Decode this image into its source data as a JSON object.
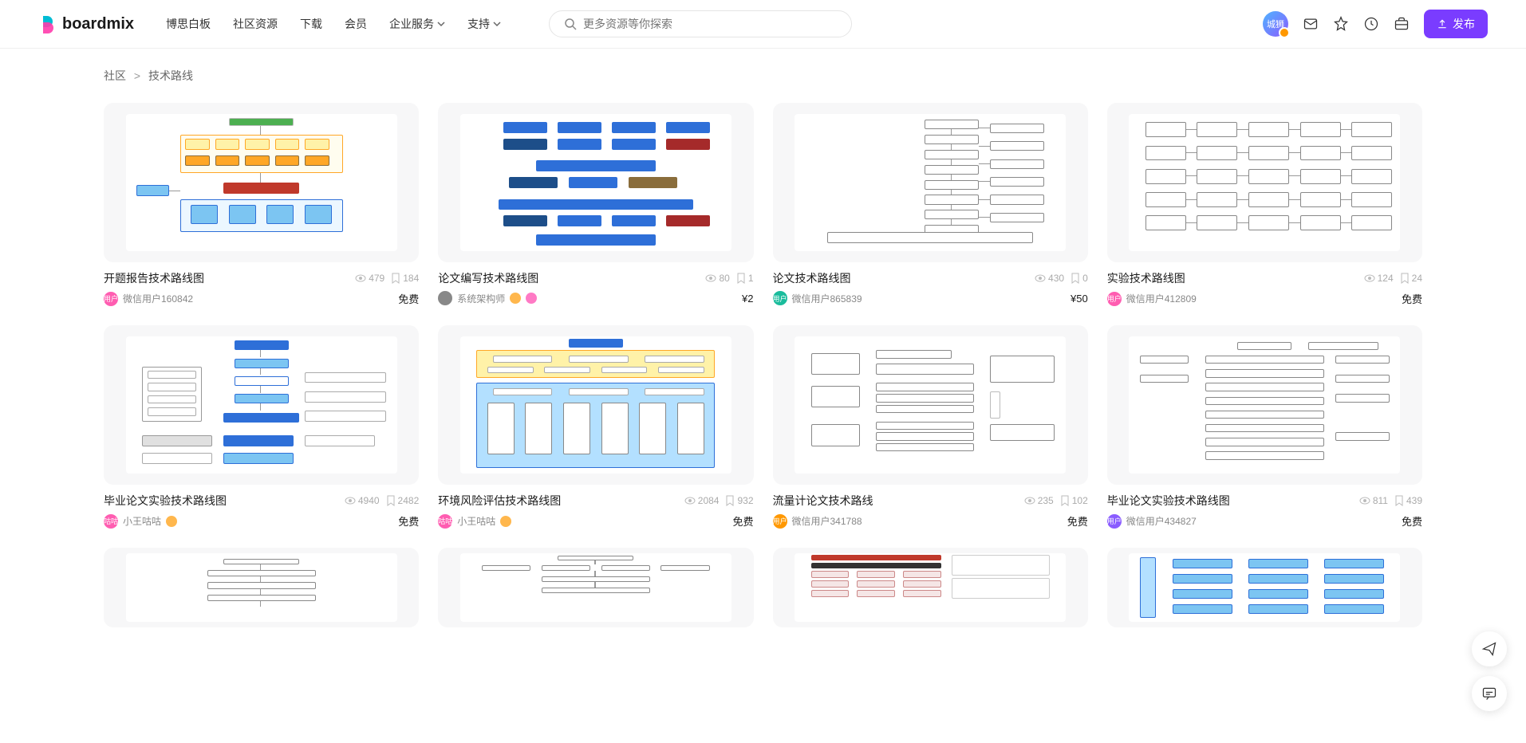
{
  "header": {
    "logo": "boardmix",
    "nav": [
      "博思白板",
      "社区资源",
      "下载",
      "会员",
      "企业服务",
      "支持"
    ],
    "search_placeholder": "更多资源等你探索",
    "avatar_text": "城狮",
    "publish_label": "发布"
  },
  "breadcrumb": {
    "root": "社区",
    "current": "技术路线"
  },
  "cards": [
    {
      "title": "开题报告技术路线图",
      "views": "479",
      "saves": "184",
      "author": "微信用户160842",
      "author_tag": "用户",
      "avatar_bg": "#ff5db1",
      "price": "免费",
      "thumb_style": 1
    },
    {
      "title": "论文编写技术路线图",
      "views": "80",
      "saves": "1",
      "author": "系统架构师",
      "author_tag": "",
      "avatar_bg": "#888",
      "has_badge": true,
      "badge2": "#ff7ac5",
      "price": "¥2",
      "thumb_style": 2
    },
    {
      "title": "论文技术路线图",
      "views": "430",
      "saves": "0",
      "author": "微信用户865839",
      "author_tag": "用户",
      "avatar_bg": "#1abc9c",
      "price": "¥50",
      "thumb_style": 3
    },
    {
      "title": "实验技术路线图",
      "views": "124",
      "saves": "24",
      "author": "微信用户412809",
      "author_tag": "用户",
      "avatar_bg": "#ff5db1",
      "price": "免费",
      "thumb_style": 4
    },
    {
      "title": "毕业论文实验技术路线图",
      "views": "4940",
      "saves": "2482",
      "author": "小王咕咕",
      "author_tag": "咕咕",
      "avatar_bg": "#ff5db1",
      "has_badge": true,
      "price": "免费",
      "thumb_style": 5
    },
    {
      "title": "环境风险评估技术路线图",
      "views": "2084",
      "saves": "932",
      "author": "小王咕咕",
      "author_tag": "咕咕",
      "avatar_bg": "#ff5db1",
      "has_badge": true,
      "price": "免费",
      "thumb_style": 6
    },
    {
      "title": "流量计论文技术路线",
      "views": "235",
      "saves": "102",
      "author": "微信用户341788",
      "author_tag": "用户",
      "avatar_bg": "#ff9800",
      "price": "免费",
      "thumb_style": 7
    },
    {
      "title": "毕业论文实验技术路线图",
      "views": "811",
      "saves": "439",
      "author": "微信用户434827",
      "author_tag": "用户",
      "avatar_bg": "#8a5cff",
      "price": "免费",
      "thumb_style": 8
    },
    {
      "title": "",
      "thumb_style": 9,
      "partial": true
    },
    {
      "title": "",
      "thumb_style": 10,
      "partial": true
    },
    {
      "title": "",
      "thumb_style": 11,
      "partial": true
    },
    {
      "title": "",
      "thumb_style": 12,
      "partial": true
    }
  ],
  "palette": {
    "blue": "#2e6fd8",
    "navy": "#1d4e89",
    "lightblue": "#7cc5f2",
    "skyblue": "#b3e0ff",
    "yellow": "#fff2a8",
    "orange": "#ffa726",
    "brown": "#8a6d3b",
    "red": "#c0392b",
    "green": "#4caf50",
    "cyan": "#00bcd4",
    "grey": "#e0e0e0",
    "darkred": "#a52a2a"
  }
}
